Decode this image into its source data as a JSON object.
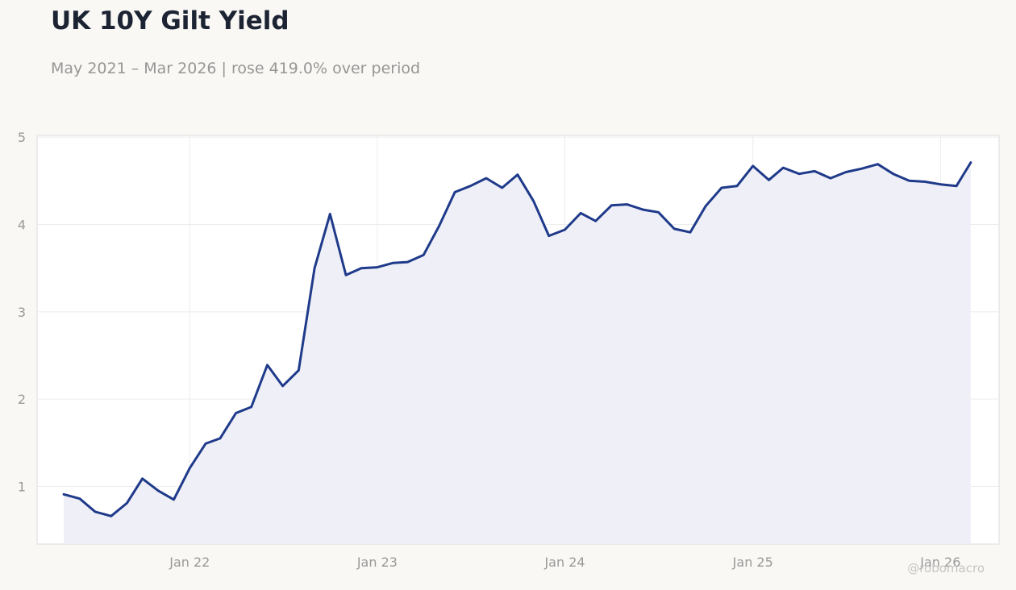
{
  "header": {
    "title": "UK 10Y Gilt Yield",
    "subtitle": "May 2021 – Mar 2026 | rose 419.0% over period"
  },
  "watermark": "@robomacro",
  "colors": {
    "background": "#f9f8f5",
    "plot_background": "#ffffff",
    "line": "#1f3a8a",
    "area_fill": "#eeeff6",
    "grid": "#ececec",
    "text_muted": "#999999",
    "title": "#1c2433"
  },
  "chart_data": {
    "type": "area",
    "title": "UK 10Y Gilt Yield",
    "subtitle": "May 2021 – Mar 2026 | rose 419.0% over period",
    "xlabel": "",
    "ylabel": "",
    "ylim": [
      0.34,
      5.02
    ],
    "xlim": [
      "2021-03-10",
      "2026-04-25"
    ],
    "grid": true,
    "legend": "none",
    "yticks": [
      1,
      2,
      3,
      4,
      5
    ],
    "xticks": [
      {
        "date": "2022-01-01",
        "label": "Jan 22"
      },
      {
        "date": "2023-01-01",
        "label": "Jan 23"
      },
      {
        "date": "2024-01-01",
        "label": "Jan 24"
      },
      {
        "date": "2025-01-01",
        "label": "Jan 25"
      },
      {
        "date": "2026-01-01",
        "label": "Jan 26"
      }
    ],
    "series": [
      {
        "points": [
          [
            "2021-05-01",
            0.91
          ],
          [
            "2021-06-01",
            0.86
          ],
          [
            "2021-07-01",
            0.71
          ],
          [
            "2021-08-01",
            0.66
          ],
          [
            "2021-09-01",
            0.81
          ],
          [
            "2021-10-01",
            1.09
          ],
          [
            "2021-11-01",
            0.95
          ],
          [
            "2021-12-01",
            0.85
          ],
          [
            "2022-01-01",
            1.21
          ],
          [
            "2022-02-01",
            1.49
          ],
          [
            "2022-03-01",
            1.55
          ],
          [
            "2022-04-01",
            1.84
          ],
          [
            "2022-05-01",
            1.91
          ],
          [
            "2022-06-01",
            2.39
          ],
          [
            "2022-07-01",
            2.15
          ],
          [
            "2022-08-01",
            2.33
          ],
          [
            "2022-09-01",
            3.5
          ],
          [
            "2022-10-01",
            4.12
          ],
          [
            "2022-11-01",
            3.42
          ],
          [
            "2022-12-01",
            3.5
          ],
          [
            "2023-01-01",
            3.51
          ],
          [
            "2023-02-01",
            3.56
          ],
          [
            "2023-03-01",
            3.57
          ],
          [
            "2023-04-01",
            3.65
          ],
          [
            "2023-05-01",
            3.98
          ],
          [
            "2023-06-01",
            4.37
          ],
          [
            "2023-07-01",
            4.44
          ],
          [
            "2023-08-01",
            4.53
          ],
          [
            "2023-09-01",
            4.42
          ],
          [
            "2023-10-01",
            4.57
          ],
          [
            "2023-11-01",
            4.27
          ],
          [
            "2023-12-01",
            3.87
          ],
          [
            "2024-01-01",
            3.94
          ],
          [
            "2024-02-01",
            4.13
          ],
          [
            "2024-03-01",
            4.04
          ],
          [
            "2024-04-01",
            4.22
          ],
          [
            "2024-05-01",
            4.23
          ],
          [
            "2024-06-01",
            4.17
          ],
          [
            "2024-07-01",
            4.14
          ],
          [
            "2024-08-01",
            3.95
          ],
          [
            "2024-09-01",
            3.91
          ],
          [
            "2024-10-01",
            4.21
          ],
          [
            "2024-11-01",
            4.42
          ],
          [
            "2024-12-01",
            4.44
          ],
          [
            "2025-01-01",
            4.67
          ],
          [
            "2025-02-01",
            4.51
          ],
          [
            "2025-03-01",
            4.65
          ],
          [
            "2025-04-01",
            4.58
          ],
          [
            "2025-05-01",
            4.61
          ],
          [
            "2025-06-01",
            4.53
          ],
          [
            "2025-07-01",
            4.6
          ],
          [
            "2025-08-01",
            4.64
          ],
          [
            "2025-09-01",
            4.69
          ],
          [
            "2025-10-01",
            4.58
          ],
          [
            "2025-11-01",
            4.5
          ],
          [
            "2025-12-01",
            4.49
          ],
          [
            "2026-01-01",
            4.46
          ],
          [
            "2026-02-01",
            4.44
          ],
          [
            "2026-03-01",
            4.71
          ]
        ]
      }
    ]
  }
}
